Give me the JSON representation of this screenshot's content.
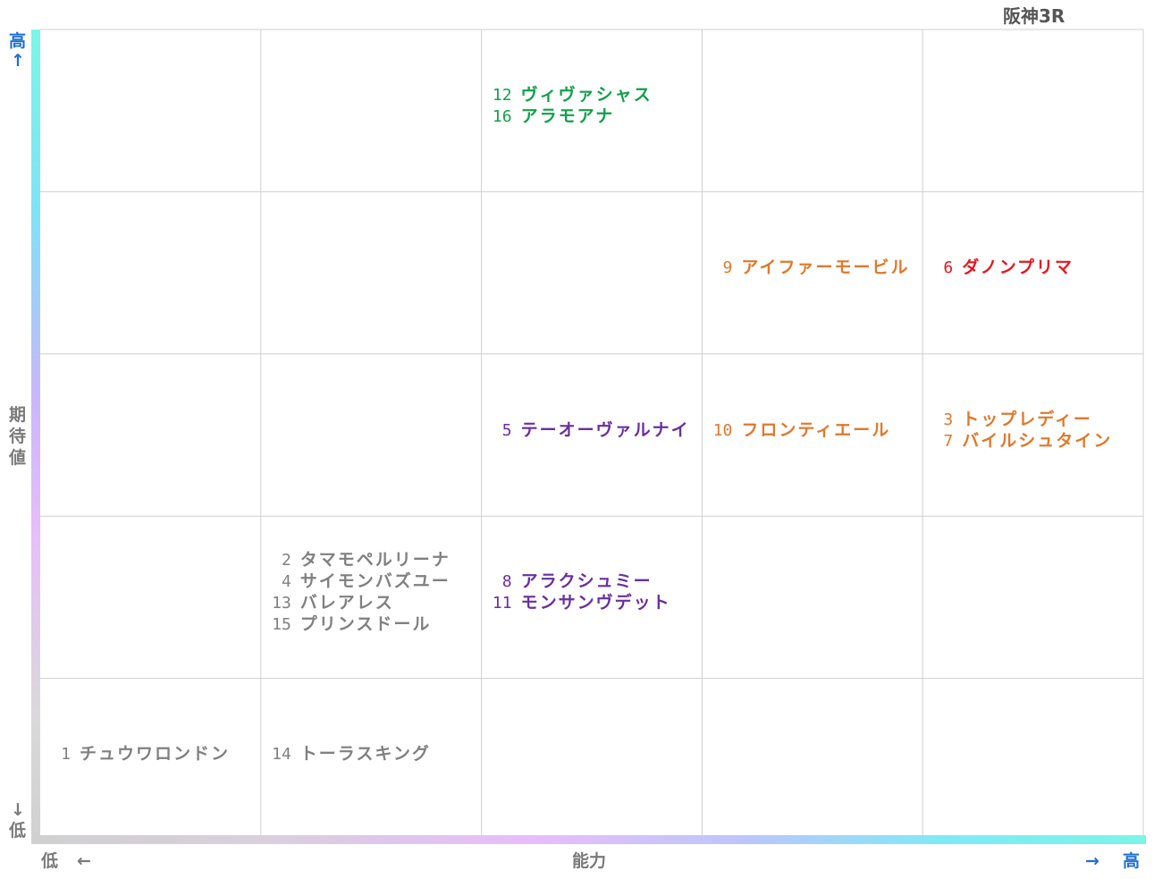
{
  "race_title": "阪神3R",
  "axes": {
    "y_top": "高",
    "y_top_arrow": "↑",
    "y_label": [
      "期",
      "待",
      "値"
    ],
    "y_bottom_arrow": "↓",
    "y_bottom": "低",
    "x_left": "低",
    "x_left_arrow": "←",
    "x_label": "能力",
    "x_right_arrow": "→",
    "x_right": "高"
  },
  "colors": {
    "green": "#12a04a",
    "orange": "#e0782b",
    "red": "#e8141c",
    "purple": "#6a2fa0",
    "gray": "#808080",
    "grid": "#cfcfcf",
    "axis_label_blue": "#1f6fd0"
  },
  "chart_data": {
    "type": "table",
    "x_axis": "能力",
    "y_axis": "期待値",
    "columns": 5,
    "rows": 5,
    "cells": [
      {
        "col": 3,
        "row": 1,
        "color": "green",
        "horses": [
          {
            "no": "12",
            "name": "ヴィヴァシャス"
          },
          {
            "no": "16",
            "name": "アラモアナ"
          }
        ]
      },
      {
        "col": 4,
        "row": 2,
        "color": "orange",
        "horses": [
          {
            "no": "9",
            "name": "アイファーモービル"
          }
        ]
      },
      {
        "col": 5,
        "row": 2,
        "color": "red",
        "horses": [
          {
            "no": "6",
            "name": "ダノンプリマ"
          }
        ]
      },
      {
        "col": 3,
        "row": 3,
        "color": "purple",
        "horses": [
          {
            "no": "5",
            "name": "テーオーヴァルナイ"
          }
        ]
      },
      {
        "col": 4,
        "row": 3,
        "color": "orange",
        "horses": [
          {
            "no": "10",
            "name": "フロンティエール"
          }
        ]
      },
      {
        "col": 5,
        "row": 3,
        "color": "orange",
        "horses": [
          {
            "no": "3",
            "name": "トップレディー"
          },
          {
            "no": "7",
            "name": "バイルシュタイン"
          }
        ]
      },
      {
        "col": 2,
        "row": 4,
        "color": "gray",
        "horses": [
          {
            "no": "2",
            "name": "タマモペルリーナ"
          },
          {
            "no": "4",
            "name": "サイモンバズユー"
          },
          {
            "no": "13",
            "name": "バレアレス"
          },
          {
            "no": "15",
            "name": "プリンスドール"
          }
        ]
      },
      {
        "col": 3,
        "row": 4,
        "color": "purple",
        "horses": [
          {
            "no": "8",
            "name": "アラクシュミー"
          },
          {
            "no": "11",
            "name": "モンサンヴデット"
          }
        ]
      },
      {
        "col": 1,
        "row": 5,
        "color": "gray",
        "horses": [
          {
            "no": "1",
            "name": "チュウワロンドン"
          }
        ]
      },
      {
        "col": 2,
        "row": 5,
        "color": "gray",
        "horses": [
          {
            "no": "14",
            "name": "トーラスキング"
          }
        ]
      }
    ]
  }
}
